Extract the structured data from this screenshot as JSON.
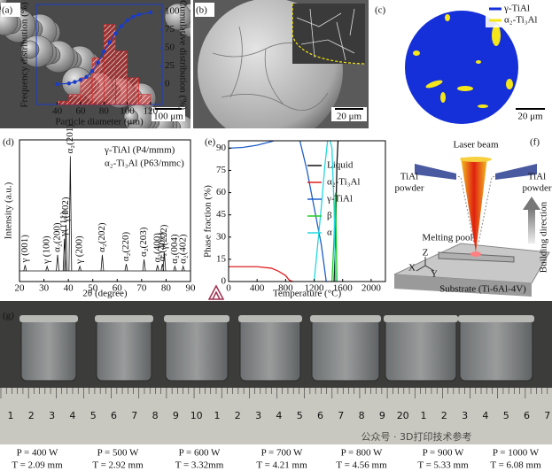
{
  "panel_labels": [
    "(a)",
    "(b)",
    "(c)",
    "(d)",
    "(e)",
    "(f)",
    "(g)"
  ],
  "scale_bars": {
    "a": "100 μm",
    "b": "20 μm",
    "c": "20 μm"
  },
  "panel_c_legend": [
    {
      "name": "γ-TiAl",
      "color": "#1530d8"
    },
    {
      "name": "α₂-Ti₃Al",
      "color": "#f5e61a"
    }
  ],
  "chart_data": [
    {
      "type": "histogram",
      "x_label": "Particle diameter (μm)",
      "y_label": "Frequency distribution (%)",
      "y2_label": "Cumulative distribution (%)",
      "bins": [
        40,
        50,
        60,
        70,
        80,
        90,
        100,
        110,
        120
      ],
      "counts": [
        1,
        3,
        8,
        14,
        24,
        16,
        8,
        3
      ],
      "color": "#d42020",
      "xlim": [
        22,
        130
      ],
      "xticks": [
        40,
        60,
        80,
        100,
        120
      ],
      "ylim": [
        0,
        30
      ],
      "y2lim": [
        -28,
        110
      ],
      "y2ticks": [
        0,
        25,
        50,
        75,
        100
      ],
      "cumulative": {
        "x": [
          40,
          50,
          55,
          60,
          65,
          70,
          75,
          80,
          85,
          90,
          95,
          100,
          105,
          110,
          120
        ],
        "values": [
          0,
          1,
          3,
          6,
          10,
          18,
          30,
          45,
          58,
          70,
          80,
          88,
          93,
          96,
          99
        ],
        "color": "#1a3cc8",
        "axis": "y2"
      }
    },
    {
      "type": "xrd",
      "x_label": "2θ (degree)",
      "y_label": "Intensity (a.u.)",
      "legend": [
        "γ-TiAl (P4/mmm)",
        "α₂-Ti₃Al (P63/mmc)"
      ],
      "xlim": [
        20,
        90
      ],
      "xticks": [
        20,
        30,
        40,
        50,
        60,
        70,
        80,
        90
      ],
      "ylim": [
        0,
        105
      ],
      "color": "#111111",
      "peaks": {
        "x": [
          22.3,
          31.3,
          35.6,
          38.4,
          39.0,
          40.8,
          44.7,
          53.9,
          63.7,
          71.0,
          76.5,
          78.5,
          79.3,
          83.6,
          87.0
        ],
        "values": [
          5,
          4,
          14,
          28,
          40,
          100,
          4,
          14,
          6,
          10,
          5,
          6,
          16,
          4,
          4
        ],
        "labels": [
          "γ (001)",
          "γ (100)",
          "α₂(200)",
          "γ(111)",
          "γ(002)",
          "α₂(201)",
          "γ (200)",
          "α₂(202)",
          "α₂(220)",
          "α₂(203)",
          "α₂(400)",
          "α₂(401)",
          "γ(222)",
          "α₂(004)",
          "α₂(402)"
        ]
      }
    },
    {
      "type": "line",
      "x_label": "Temperature (°C)",
      "y_label": "Phase fraction (%)",
      "xlim": [
        0,
        2200
      ],
      "xticks": [
        0,
        400,
        800,
        1200,
        1600,
        2000
      ],
      "ylim": [
        0,
        95
      ],
      "yticks": [
        0,
        15,
        30,
        45,
        60,
        75,
        90
      ],
      "series": [
        {
          "name": "Liquid",
          "color": "#111111",
          "x": [
            1480,
            1500,
            1520,
            1540
          ],
          "values": [
            0,
            30,
            80,
            100
          ]
        },
        {
          "name": "α₂-Ti₃Al",
          "color": "#e02020",
          "x": [
            0,
            200,
            400,
            600,
            700,
            800,
            850,
            900
          ],
          "values": [
            10,
            10,
            10,
            9,
            7,
            4,
            1,
            0
          ]
        },
        {
          "name": "γ-TiAl",
          "color": "#1f5fc8",
          "x": [
            0,
            200,
            400,
            600,
            700,
            800,
            900,
            1000,
            1100,
            1200,
            1300,
            1370
          ],
          "values": [
            90,
            90.5,
            92,
            94.5,
            96,
            97,
            97,
            95,
            75,
            50,
            25,
            0
          ]
        },
        {
          "name": "β",
          "color": "#22cc22",
          "x": [
            1450,
            1480,
            1500,
            1520
          ],
          "values": [
            0,
            30,
            60,
            0
          ]
        },
        {
          "name": "α",
          "color": "#22d8e0",
          "x": [
            1200,
            1250,
            1300,
            1350,
            1400,
            1450,
            1480,
            1500
          ],
          "values": [
            0,
            25,
            50,
            78,
            100,
            90,
            50,
            0
          ]
        }
      ]
    }
  ],
  "diagram_f": {
    "laser": "Laser beam",
    "powder_left": [
      "TiAl",
      "powder"
    ],
    "powder_right": [
      "TiAl",
      "powder"
    ],
    "pool": "Melting pool",
    "direction": "Building direction",
    "substrate": "Substrate (Ti-6Al-4V)",
    "axes": [
      "X",
      "Y",
      "Z"
    ]
  },
  "ruler": [
    "1",
    "2",
    "3",
    "4",
    "5",
    "6",
    "7",
    "8",
    "9",
    "10",
    "1",
    "2",
    "3",
    "4",
    "5",
    "6",
    "7",
    "8",
    "9",
    "20",
    "1",
    "2",
    "3",
    "4",
    "5",
    "6",
    "7"
  ],
  "samples": [
    {
      "power": "P = 400 W",
      "thickness": "T = 2.09 mm"
    },
    {
      "power": "P = 500 W",
      "thickness": "T = 2.92 mm"
    },
    {
      "power": "P = 600 W",
      "thickness": "T = 3.32mm"
    },
    {
      "power": "P = 700 W",
      "thickness": "T = 4.21 mm"
    },
    {
      "power": "P = 800 W",
      "thickness": "T = 4.56 mm"
    },
    {
      "power": "P = 900 W",
      "thickness": "T = 5.33 mm"
    },
    {
      "power": "P = 1000 W",
      "thickness": "T = 6.08 mm"
    }
  ],
  "watermark": "公众号 · 3D打印技术参考"
}
